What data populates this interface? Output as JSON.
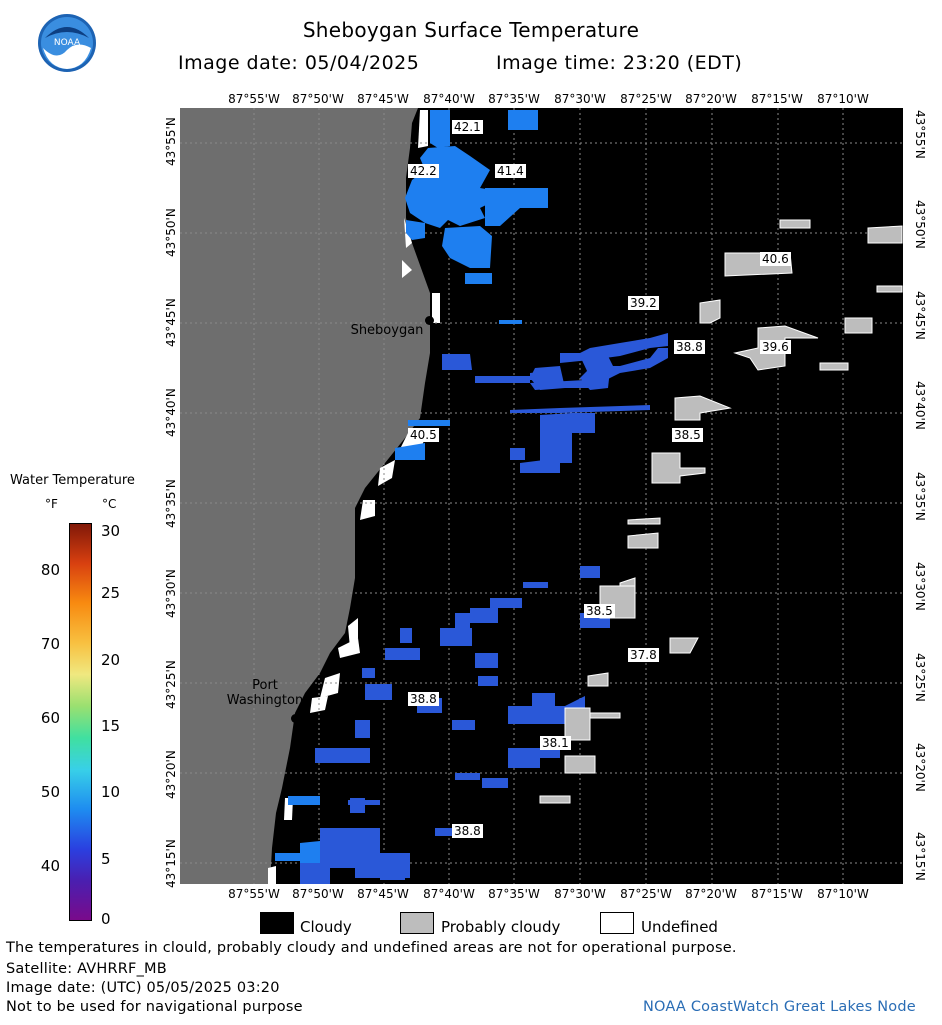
{
  "header": {
    "title": "Sheboygan Surface Temperature",
    "image_date": "Image date: 05/04/2025",
    "image_time": "Image time: 23:20 (EDT)"
  },
  "logo": {
    "text": "NOAA"
  },
  "axes": {
    "lon_labels": [
      "87°55'W",
      "87°50'W",
      "87°45'W",
      "87°40'W",
      "87°35'W",
      "87°30'W",
      "87°25'W",
      "87°20'W",
      "87°15'W",
      "87°10'W"
    ],
    "lat_labels": [
      "43°55'N",
      "43°50'N",
      "43°45'N",
      "43°40'N",
      "43°35'N",
      "43°30'N",
      "43°25'N",
      "43°20'N",
      "43°15'N"
    ]
  },
  "places": [
    {
      "name": "Sheboygan"
    },
    {
      "name": "Port Washington"
    }
  ],
  "temperature_labels": [
    "42.1",
    "42.2",
    "41.4",
    "40.6",
    "39.2",
    "38.8",
    "39.6",
    "40.5",
    "38.5",
    "38.5",
    "37.8",
    "38.8",
    "38.1",
    "38.8"
  ],
  "legend": {
    "title": "Water Temperature",
    "unit_f": "°F",
    "unit_c": "°C",
    "f_ticks": [
      "80",
      "70",
      "60",
      "50",
      "40"
    ],
    "c_ticks": [
      "30",
      "25",
      "20",
      "15",
      "10",
      "5",
      "0"
    ],
    "keys": [
      {
        "label": "Cloudy",
        "color": "#000000"
      },
      {
        "label": "Probably cloudy",
        "color": "#bdbdbd"
      },
      {
        "label": "Undefined",
        "color": "#ffffff"
      }
    ]
  },
  "colors": {
    "land": "#6e6e6e",
    "cloud": "#000000",
    "water_blue": "#1e7ff0",
    "water_deep": "#2a58d8",
    "probably_cloudy": "#bdbdbd"
  },
  "footer": {
    "note": "The temperatures in clould, probably cloudy and undefined areas are not for operational purpose.",
    "satellite": "Satellite: AVHRRF_MB",
    "utc": "Image date: (UTC) 05/05/2025  03:20",
    "nav": "Not to be used for navigational purpose",
    "credit": "NOAA CoastWatch Great Lakes Node"
  }
}
